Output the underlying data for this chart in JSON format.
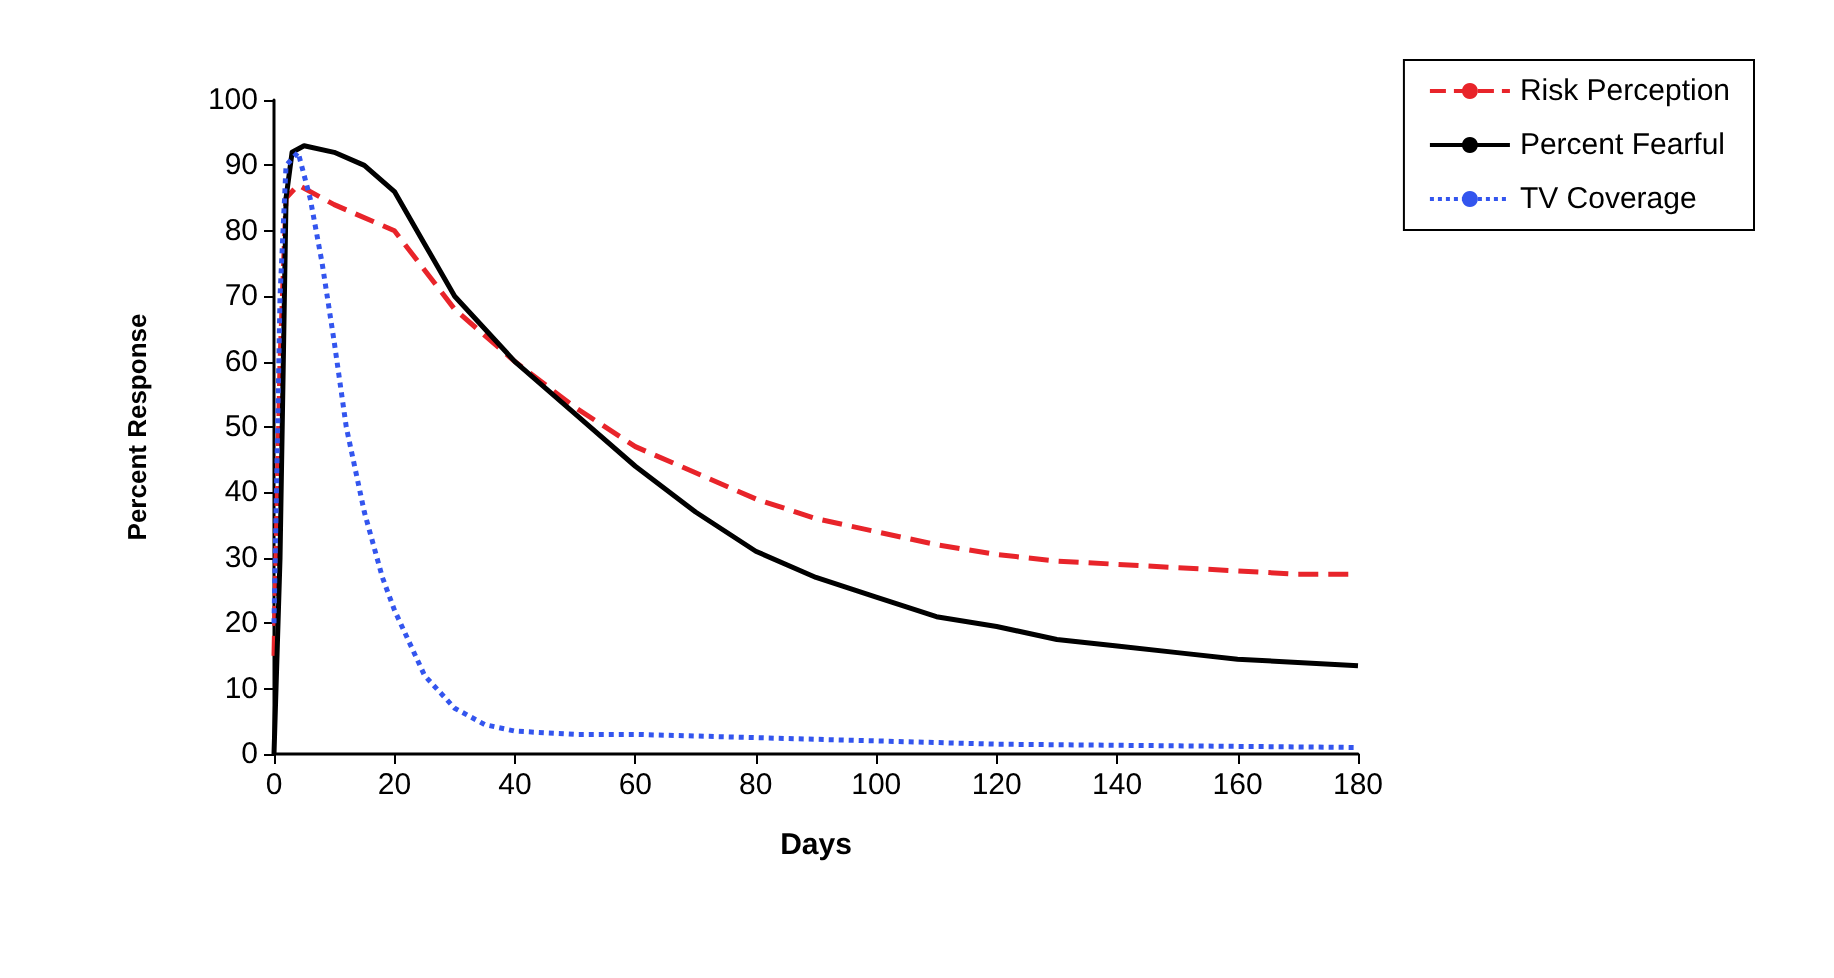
{
  "chart_data": {
    "type": "line",
    "xlabel": "Days",
    "ylabel": "Percent Response",
    "xlim": [
      0,
      180
    ],
    "xticks": [
      0,
      20,
      40,
      60,
      80,
      100,
      120,
      140,
      160,
      180
    ],
    "ylim": [
      0,
      100
    ],
    "yticks": [
      0,
      10,
      20,
      30,
      40,
      50,
      60,
      70,
      80,
      90,
      100
    ],
    "grid": false,
    "legend": "top right",
    "marker": "none",
    "series": [
      {
        "name": "Risk Perception",
        "color": "#e8242a",
        "line_style": "dashed",
        "x": [
          0,
          1,
          2,
          4,
          10,
          20,
          30,
          40,
          50,
          60,
          70,
          80,
          90,
          100,
          110,
          120,
          130,
          140,
          150,
          160,
          170,
          180
        ],
        "values": [
          15,
          60,
          85,
          87,
          84,
          80,
          68,
          60,
          53,
          47,
          43,
          39,
          36,
          34,
          32,
          30.5,
          29.5,
          29,
          28.5,
          28,
          27.5,
          27.5
        ]
      },
      {
        "name": "Percent Fearful",
        "color": "#000000",
        "line_style": "solid",
        "x": [
          0,
          1,
          2,
          3,
          5,
          10,
          15,
          20,
          25,
          30,
          40,
          50,
          60,
          70,
          80,
          90,
          100,
          110,
          120,
          130,
          140,
          150,
          160,
          170,
          180
        ],
        "values": [
          0,
          30,
          85,
          92,
          93,
          92,
          90,
          86,
          78,
          70,
          60,
          52,
          44,
          37,
          31,
          27,
          24,
          21,
          19.5,
          17.5,
          16.5,
          15.5,
          14.5,
          14,
          13.5
        ]
      },
      {
        "name": "TV Coverage",
        "color": "#3355ee",
        "line_style": "dotted",
        "x": [
          0,
          1,
          2,
          4,
          6,
          8,
          10,
          12,
          15,
          18,
          20,
          25,
          30,
          35,
          40,
          50,
          60,
          80,
          100,
          120,
          180
        ],
        "values": [
          20,
          70,
          90,
          92,
          85,
          75,
          63,
          50,
          37,
          27,
          22,
          12,
          7,
          4.5,
          3.5,
          3,
          3,
          2.5,
          2,
          1.5,
          1
        ]
      }
    ]
  }
}
